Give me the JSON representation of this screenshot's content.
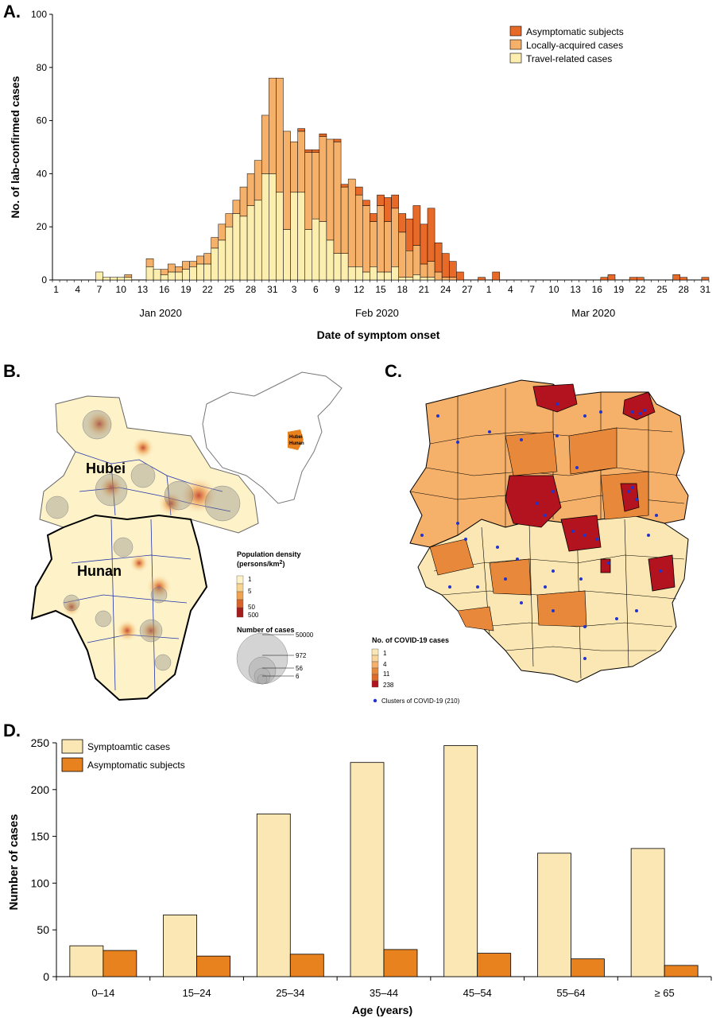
{
  "panels": {
    "a": {
      "letter": "A."
    },
    "b": {
      "letter": "B."
    },
    "c": {
      "letter": "C."
    },
    "d": {
      "letter": "D."
    }
  },
  "colors": {
    "asymptomatic": "#e86a28",
    "local": "#f5b06a",
    "travel": "#fbeeae",
    "symptomatic_bar": "#fbe7b3",
    "asymptomatic_bar": "#e8821e",
    "dark_red": "#b3121f",
    "cluster_dot": "#2233cc",
    "hubei_border": "#000000",
    "map_blue": "#2233aa"
  },
  "chart_data": [
    {
      "type": "bar",
      "stacked": true,
      "xlabel": "Date of symptom onset",
      "ylabel": "No. of lab-confirmed cases",
      "ylim": [
        0,
        100
      ],
      "yticks": [
        0,
        20,
        40,
        60,
        80,
        100
      ],
      "x_tick_labels": [
        "1",
        "4",
        "7",
        "10",
        "13",
        "16",
        "19",
        "22",
        "25",
        "28",
        "31",
        "3",
        "6",
        "9",
        "12",
        "15",
        "18",
        "21",
        "24",
        "27",
        "1",
        "4",
        "7",
        "10",
        "13",
        "16",
        "19",
        "22",
        "25",
        "28",
        "31"
      ],
      "month_labels": [
        "Jan 2020",
        "Feb 2020",
        "Mar 2020"
      ],
      "legend": [
        "Asymptomatic subjects",
        "Locally-acquired cases",
        "Travel-related cases"
      ],
      "legend_position": "top-right",
      "categories_note": "daily, Jan 1 to Mar 31 2020",
      "series": [
        {
          "name": "Travel-related cases",
          "values": [
            0,
            0,
            0,
            0,
            0,
            0,
            3,
            1,
            1,
            1,
            1,
            0,
            0,
            5,
            4,
            2,
            3,
            3,
            4,
            5,
            6,
            6,
            12,
            15,
            20,
            25,
            24,
            28,
            30,
            40,
            40,
            33,
            19,
            33,
            33,
            19,
            23,
            22,
            15,
            10,
            10,
            5,
            5,
            3,
            5,
            3,
            3,
            5,
            1,
            1,
            2,
            1,
            1,
            0,
            0,
            0,
            0,
            0,
            0,
            0,
            0,
            0,
            0,
            0,
            0,
            0,
            0,
            0,
            0,
            0,
            0,
            0,
            0,
            0,
            0,
            0,
            0,
            0,
            0,
            0,
            0,
            0,
            0,
            0,
            0,
            0,
            0,
            0,
            0,
            0,
            0
          ]
        },
        {
          "name": "Locally-acquired cases",
          "values": [
            0,
            0,
            0,
            0,
            0,
            0,
            0,
            0,
            0,
            0,
            1,
            0,
            0,
            3,
            0,
            2,
            3,
            2,
            3,
            2,
            3,
            4,
            4,
            6,
            5,
            5,
            11,
            12,
            15,
            22,
            36,
            43,
            37,
            19,
            23,
            29,
            25,
            32,
            38,
            42,
            25,
            33,
            27,
            25,
            17,
            25,
            19,
            22,
            17,
            10,
            11,
            5,
            6,
            3,
            1,
            1,
            0,
            0,
            0,
            0,
            0,
            0,
            0,
            0,
            0,
            0,
            0,
            0,
            0,
            0,
            0,
            0,
            0,
            0,
            0,
            0,
            0,
            0,
            0,
            0,
            0,
            0,
            0,
            0,
            0,
            0,
            0,
            0,
            0,
            0,
            0
          ]
        },
        {
          "name": "Asymptomatic subjects",
          "values": [
            0,
            0,
            0,
            0,
            0,
            0,
            0,
            0,
            0,
            0,
            0,
            0,
            0,
            0,
            0,
            0,
            0,
            0,
            0,
            0,
            0,
            0,
            0,
            0,
            0,
            0,
            0,
            0,
            0,
            0,
            0,
            0,
            0,
            0,
            1,
            1,
            1,
            1,
            0,
            1,
            1,
            0,
            3,
            2,
            3,
            4,
            9,
            5,
            7,
            12,
            15,
            15,
            20,
            11,
            9,
            6,
            3,
            0,
            0,
            1,
            0,
            3,
            0,
            0,
            0,
            0,
            0,
            0,
            0,
            0,
            0,
            0,
            0,
            0,
            0,
            0,
            1,
            2,
            0,
            0,
            1,
            1,
            0,
            0,
            0,
            0,
            2,
            1,
            0,
            0,
            1
          ]
        }
      ]
    },
    {
      "type": "bar",
      "xlabel": "Age (years)",
      "ylabel": "Number of cases",
      "ylim": [
        0,
        250
      ],
      "yticks": [
        0,
        50,
        100,
        150,
        200,
        250
      ],
      "categories": [
        "0–14",
        "15–24",
        "25–34",
        "35–44",
        "45–54",
        "55–64",
        "≥ 65"
      ],
      "legend_position": "top-left",
      "series": [
        {
          "name": "Symptoamtic cases",
          "values": [
            33,
            66,
            174,
            229,
            247,
            132,
            137
          ]
        },
        {
          "name": "Asymptomatic subjects",
          "values": [
            28,
            22,
            24,
            29,
            25,
            19,
            12
          ]
        }
      ]
    }
  ],
  "map_b": {
    "label_hubei": "Hubei",
    "label_hunan": "Hunan",
    "inset_hubei": "Hubei",
    "inset_hunan": "Hunan",
    "pop_title_line1": "Population density",
    "pop_title_line2": "(persons/km",
    "pop_title_sup": "2",
    "pop_title_end": ")",
    "pop_levels": [
      "1",
      "5",
      "50",
      "500"
    ],
    "cases_title": "Number of cases",
    "cases_levels": [
      "50000",
      "972",
      "56",
      "6"
    ]
  },
  "map_c": {
    "legend_title": "No. of COVID-19 cases",
    "levels": [
      "1",
      "4",
      "11",
      "238"
    ],
    "cluster_label": "Clusters of COVID-19 (210)"
  }
}
